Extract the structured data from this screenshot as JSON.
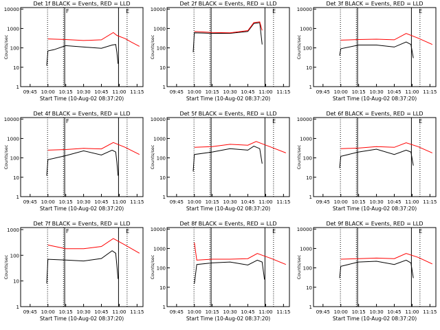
{
  "figure": {
    "colors": {
      "events": "#000000",
      "lld": "#ff0000",
      "axes": "#000000"
    }
  },
  "chart_data": [
    {
      "type": "line",
      "title": "Det 1f BLACK = Events, RED = LLD",
      "xlabel": "Start Time (10-Aug-02 08:37:20)",
      "ylabel": "Counts/sec",
      "xticks": [
        "09:45",
        "10:00",
        "10:15",
        "10:30",
        "10:45",
        "11:00",
        "11:15"
      ],
      "yticks": [
        "1",
        "10",
        "100",
        "1000",
        "10000"
      ],
      "ylog": true,
      "xlim": [
        "09:37",
        "11:20"
      ],
      "ylim": [
        1,
        12000
      ],
      "markers": [
        "F",
        "E"
      ],
      "grid": false,
      "series": [
        {
          "name": "Events",
          "color": "#000000",
          "x": [
            "09:59",
            "10:00",
            "10:05",
            "10:15",
            "10:30",
            "10:45",
            "10:54",
            "10:57",
            "10:58",
            "10:59"
          ],
          "y": [
            12,
            70,
            80,
            130,
            110,
            95,
            140,
            150,
            60,
            15
          ]
        },
        {
          "name": "LLD",
          "color": "#ff0000",
          "x": [
            "10:00",
            "10:15",
            "10:30",
            "10:45",
            "10:55",
            "10:58",
            "11:05",
            "11:10",
            "11:17"
          ],
          "y": [
            290,
            270,
            240,
            260,
            620,
            440,
            300,
            200,
            120
          ]
        }
      ]
    },
    {
      "type": "line",
      "title": "Det 2f BLACK = Events, RED = LLD",
      "xlabel": "Start Time (10-Aug-02 08:37:20)",
      "ylabel": "Counts/sec",
      "xticks": [
        "09:45",
        "10:00",
        "10:15",
        "10:30",
        "10:45",
        "11:00",
        "11:15"
      ],
      "yticks": [
        "1",
        "10",
        "100",
        "1000",
        "10000"
      ],
      "ylog": true,
      "xlim": [
        "09:37",
        "11:20"
      ],
      "ylim": [
        1,
        12000
      ],
      "markers": [
        "E"
      ],
      "grid": false,
      "series": [
        {
          "name": "Events",
          "color": "#000000",
          "x": [
            "09:59",
            "10:00",
            "10:15",
            "10:30",
            "10:45",
            "10:50",
            "10:55",
            "10:57"
          ],
          "y": [
            60,
            600,
            560,
            560,
            700,
            1800,
            2000,
            150
          ]
        },
        {
          "name": "LLD",
          "color": "#ff0000",
          "x": [
            "10:00",
            "10:15",
            "10:30",
            "10:45",
            "10:50",
            "10:55",
            "10:57"
          ],
          "y": [
            700,
            620,
            600,
            780,
            2000,
            2200,
            800
          ]
        }
      ]
    },
    {
      "type": "line",
      "title": "Det 3f BLACK = Events, RED = LLD",
      "xlabel": "Start Time (10-Aug-02 08:37:20)",
      "ylabel": "Counts/sec",
      "xticks": [
        "09:45",
        "10:00",
        "10:15",
        "10:30",
        "10:45",
        "11:00",
        "11:15"
      ],
      "yticks": [
        "1",
        "10",
        "100",
        "1000",
        "10000"
      ],
      "ylog": true,
      "xlim": [
        "09:37",
        "11:20"
      ],
      "ylim": [
        1,
        12000
      ],
      "markers": [
        "E"
      ],
      "grid": false,
      "series": [
        {
          "name": "Events",
          "color": "#000000",
          "x": [
            "09:59",
            "10:00",
            "10:15",
            "10:30",
            "10:45",
            "10:55",
            "10:59",
            "11:01"
          ],
          "y": [
            40,
            90,
            140,
            140,
            110,
            200,
            150,
            30
          ]
        },
        {
          "name": "LLD",
          "color": "#ff0000",
          "x": [
            "10:00",
            "10:15",
            "10:30",
            "10:45",
            "10:55",
            "11:05",
            "11:17"
          ],
          "y": [
            250,
            270,
            280,
            260,
            550,
            320,
            150
          ]
        }
      ]
    },
    {
      "type": "line",
      "title": "Det 4f BLACK = Events, RED = LLD",
      "xlabel": "Start Time (10-Aug-02 08:37:20)",
      "ylabel": "Counts/sec",
      "xticks": [
        "09:45",
        "10:00",
        "10:15",
        "10:30",
        "10:45",
        "11:00",
        "11:15"
      ],
      "yticks": [
        "1",
        "10",
        "100",
        "1000",
        "10000"
      ],
      "ylog": true,
      "xlim": [
        "09:37",
        "11:20"
      ],
      "ylim": [
        1,
        12000
      ],
      "markers": [
        "F"
      ],
      "grid": false,
      "series": [
        {
          "name": "Events",
          "color": "#000000",
          "x": [
            "09:59",
            "10:00",
            "10:15",
            "10:30",
            "10:45",
            "10:54",
            "10:57",
            "10:58",
            "10:59"
          ],
          "y": [
            12,
            80,
            130,
            230,
            140,
            250,
            200,
            60,
            12
          ]
        },
        {
          "name": "LLD",
          "color": "#ff0000",
          "x": [
            "10:00",
            "10:15",
            "10:30",
            "10:45",
            "10:55",
            "11:05",
            "11:17"
          ],
          "y": [
            250,
            270,
            310,
            290,
            620,
            350,
            150
          ]
        }
      ]
    },
    {
      "type": "line",
      "title": "Det 5f BLACK = Events, RED = LLD",
      "xlabel": "Start Time (10-Aug-02 08:37:20)",
      "ylabel": "Counts/sec",
      "xticks": [
        "09:45",
        "10:00",
        "10:15",
        "10:30",
        "10:45",
        "11:00",
        "11:15"
      ],
      "yticks": [
        "1",
        "10",
        "100",
        "1000",
        "10000"
      ],
      "ylog": true,
      "xlim": [
        "09:37",
        "11:20"
      ],
      "ylim": [
        1,
        12000
      ],
      "markers": [
        "E"
      ],
      "grid": false,
      "series": [
        {
          "name": "Events",
          "color": "#000000",
          "x": [
            "09:59",
            "10:00",
            "10:15",
            "10:30",
            "10:45",
            "10:50",
            "10:55",
            "10:57"
          ],
          "y": [
            20,
            150,
            200,
            300,
            250,
            400,
            300,
            50
          ]
        },
        {
          "name": "LLD",
          "color": "#ff0000",
          "x": [
            "10:00",
            "10:15",
            "10:30",
            "10:45",
            "10:52",
            "11:05",
            "11:17"
          ],
          "y": [
            350,
            380,
            500,
            450,
            700,
            350,
            180
          ]
        }
      ]
    },
    {
      "type": "line",
      "title": "Det 6f BLACK = Events, RED = LLD",
      "xlabel": "Start Time (10-Aug-02 08:37:20)",
      "ylabel": "Counts/sec",
      "xticks": [
        "09:45",
        "10:00",
        "10:15",
        "10:30",
        "10:45",
        "11:00",
        "11:15"
      ],
      "yticks": [
        "1",
        "10",
        "100",
        "1000",
        "10000"
      ],
      "ylog": true,
      "xlim": [
        "09:37",
        "11:20"
      ],
      "ylim": [
        1,
        12000
      ],
      "markers": [
        "E"
      ],
      "grid": false,
      "series": [
        {
          "name": "Events",
          "color": "#000000",
          "x": [
            "09:59",
            "10:00",
            "10:15",
            "10:30",
            "10:45",
            "10:55",
            "10:59",
            "11:01"
          ],
          "y": [
            30,
            120,
            200,
            280,
            150,
            250,
            200,
            40
          ]
        },
        {
          "name": "LLD",
          "color": "#ff0000",
          "x": [
            "10:00",
            "10:15",
            "10:30",
            "10:45",
            "10:55",
            "11:05",
            "11:17"
          ],
          "y": [
            300,
            320,
            380,
            350,
            600,
            380,
            180
          ]
        }
      ]
    },
    {
      "type": "line",
      "title": "Det 7f BLACK = Events, RED = LLD",
      "xlabel": "Start Time (10-Aug-02 08:37:20)",
      "ylabel": "Counts/sec",
      "xticks": [
        "09:45",
        "10:00",
        "10:15",
        "10:30",
        "10:45",
        "11:00",
        "11:15"
      ],
      "yticks": [
        "1",
        "10",
        "100",
        "1000"
      ],
      "ylog": true,
      "xlim": [
        "09:37",
        "11:20"
      ],
      "ylim": [
        1,
        1200
      ],
      "markers": [
        "F",
        "E"
      ],
      "grid": false,
      "series": [
        {
          "name": "Events",
          "color": "#000000",
          "x": [
            "09:59",
            "10:00",
            "10:15",
            "10:30",
            "10:45",
            "10:54",
            "10:57",
            "10:58",
            "10:59"
          ],
          "y": [
            8,
            70,
            65,
            60,
            75,
            150,
            120,
            40,
            12
          ]
        },
        {
          "name": "LLD",
          "color": "#ff0000",
          "x": [
            "10:00",
            "10:15",
            "10:30",
            "10:45",
            "10:55",
            "11:05",
            "11:17"
          ],
          "y": [
            250,
            180,
            180,
            220,
            450,
            250,
            120
          ]
        }
      ]
    },
    {
      "type": "line",
      "title": "Det 8f BLACK = Events, RED = LLD",
      "xlabel": "Start Time (10-Aug-02 08:37:20)",
      "ylabel": "Counts/sec",
      "xticks": [
        "09:45",
        "10:00",
        "10:15",
        "10:30",
        "10:45",
        "11:00",
        "11:15"
      ],
      "yticks": [
        "1",
        "10",
        "100",
        "1000",
        "10000"
      ],
      "ylog": true,
      "xlim": [
        "09:37",
        "11:20"
      ],
      "ylim": [
        1,
        12000
      ],
      "markers": [
        "E"
      ],
      "grid": false,
      "series": [
        {
          "name": "Events",
          "color": "#000000",
          "x": [
            "10:00",
            "10:02",
            "10:15",
            "10:30",
            "10:45",
            "10:53",
            "10:57",
            "10:59"
          ],
          "y": [
            15,
            150,
            180,
            200,
            140,
            250,
            200,
            25
          ]
        },
        {
          "name": "LLD",
          "color": "#ff0000",
          "x": [
            "10:00",
            "10:02",
            "10:15",
            "10:30",
            "10:45",
            "10:53",
            "11:05",
            "11:17"
          ],
          "y": [
            2000,
            250,
            280,
            280,
            300,
            550,
            300,
            150
          ]
        }
      ]
    },
    {
      "type": "line",
      "title": "Det 9f BLACK = Events, RED = LLD",
      "xlabel": "Start Time (10-Aug-02 08:37:20)",
      "ylabel": "Counts/sec",
      "xticks": [
        "09:45",
        "10:00",
        "10:15",
        "10:30",
        "10:45",
        "11:00",
        "11:15"
      ],
      "yticks": [
        "1",
        "10",
        "100",
        "1000",
        "10000"
      ],
      "ylog": true,
      "xlim": [
        "09:37",
        "11:20"
      ],
      "ylim": [
        1,
        12000
      ],
      "markers": [
        "E"
      ],
      "grid": false,
      "series": [
        {
          "name": "Events",
          "color": "#000000",
          "x": [
            "09:59",
            "10:00",
            "10:15",
            "10:30",
            "10:45",
            "10:55",
            "10:59",
            "11:01"
          ],
          "y": [
            30,
            120,
            200,
            220,
            150,
            250,
            180,
            30
          ]
        },
        {
          "name": "LLD",
          "color": "#ff0000",
          "x": [
            "10:00",
            "10:15",
            "10:30",
            "10:45",
            "10:55",
            "11:05",
            "11:17"
          ],
          "y": [
            280,
            300,
            320,
            300,
            550,
            350,
            160
          ]
        }
      ]
    }
  ]
}
